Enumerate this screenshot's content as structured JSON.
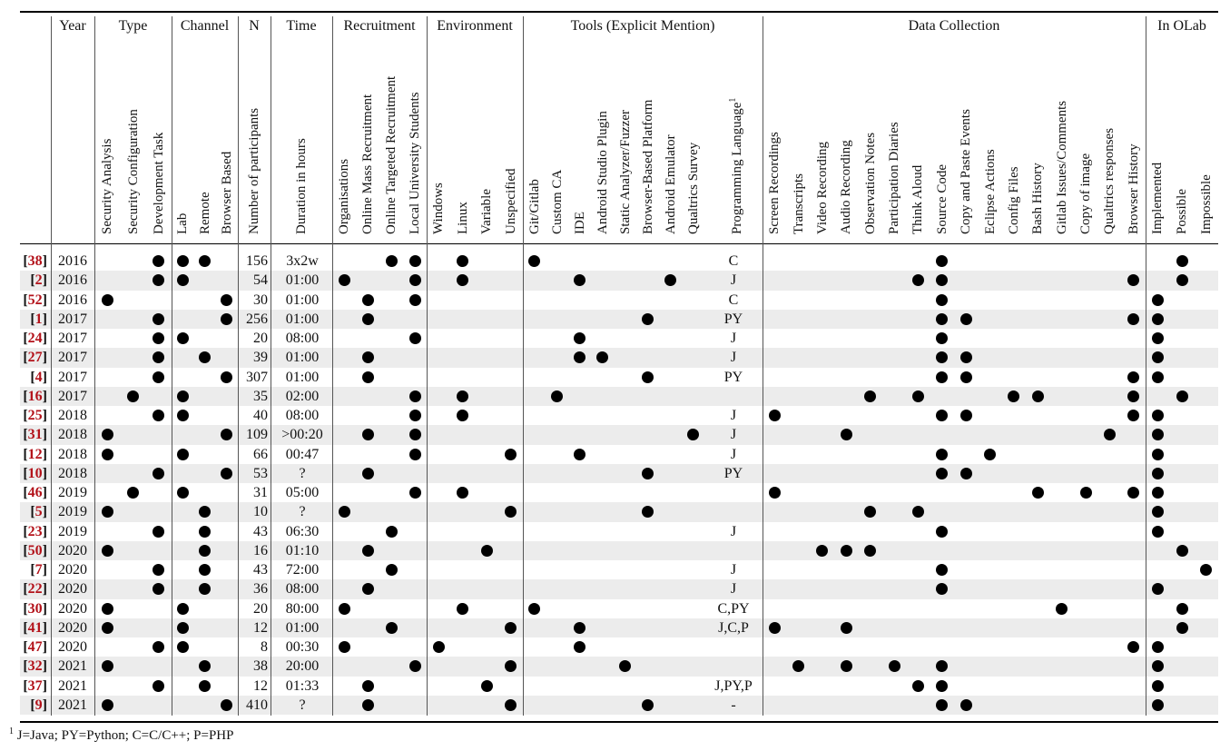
{
  "header": {
    "year": "Year",
    "n": "N",
    "time": "Time",
    "n_sub": "Number of participants",
    "time_sub": "Duration in hours",
    "groups": [
      {
        "key": "type",
        "label": "Type",
        "columns": [
          {
            "key": "sa",
            "label": "Security Analysis"
          },
          {
            "key": "sc",
            "label": "Security Configuration"
          },
          {
            "key": "dev",
            "label": "Development Task"
          }
        ]
      },
      {
        "key": "channel",
        "label": "Channel",
        "columns": [
          {
            "key": "lab",
            "label": "Lab"
          },
          {
            "key": "remote",
            "label": "Remote"
          },
          {
            "key": "browser",
            "label": "Browser Based"
          }
        ]
      },
      {
        "key": "recruit",
        "label": "Recruitment",
        "columns": [
          {
            "key": "org",
            "label": "Organisations"
          },
          {
            "key": "mass",
            "label": "Online Mass Recruitment"
          },
          {
            "key": "targeted",
            "label": "Online Targeted Recruitment"
          },
          {
            "key": "local",
            "label": "Local University Students"
          }
        ]
      },
      {
        "key": "env",
        "label": "Environment",
        "columns": [
          {
            "key": "win",
            "label": "Windows"
          },
          {
            "key": "linux",
            "label": "Linux"
          },
          {
            "key": "variable",
            "label": "Variable"
          },
          {
            "key": "unspec",
            "label": "Unspecified"
          }
        ]
      },
      {
        "key": "tools",
        "label": "Tools (Explicit Mention)",
        "columns": [
          {
            "key": "git",
            "label": "Git/Gitlab"
          },
          {
            "key": "ca",
            "label": "Custom CA"
          },
          {
            "key": "ide",
            "label": "IDE"
          },
          {
            "key": "asp",
            "label": "Android Studio Plugin"
          },
          {
            "key": "static",
            "label": "Static Analyzer/Fuzzer"
          },
          {
            "key": "bbp",
            "label": "Browser-Based Platform"
          },
          {
            "key": "emu",
            "label": "Android Emulator"
          },
          {
            "key": "qs",
            "label": "Qualtrics Survey"
          },
          {
            "key": "lang",
            "label": "Programming Language",
            "sup": "1"
          }
        ]
      },
      {
        "key": "dc",
        "label": "Data Collection",
        "columns": [
          {
            "key": "screen",
            "label": "Screen Recordings"
          },
          {
            "key": "transcripts",
            "label": "Transcripts"
          },
          {
            "key": "video",
            "label": "Video Recording"
          },
          {
            "key": "audio",
            "label": "Audio Recording"
          },
          {
            "key": "obs",
            "label": "Observation Notes"
          },
          {
            "key": "diaries",
            "label": "Participation Diaries"
          },
          {
            "key": "think",
            "label": "Think Aloud"
          },
          {
            "key": "source",
            "label": "Source Code"
          },
          {
            "key": "copy",
            "label": "Copy and Paste Events"
          },
          {
            "key": "eclipse",
            "label": "Eclipse Actions"
          },
          {
            "key": "config",
            "label": "Config Files"
          },
          {
            "key": "bash",
            "label": "Bash History"
          },
          {
            "key": "gitlab",
            "label": "Gitlab Issues/Comments"
          },
          {
            "key": "image",
            "label": "Copy of image"
          },
          {
            "key": "qresp",
            "label": "Qualtrics responses"
          },
          {
            "key": "bhist",
            "label": "Browser History"
          }
        ]
      },
      {
        "key": "olab",
        "label": "In OLab",
        "columns": [
          {
            "key": "impl",
            "label": "Implemented"
          },
          {
            "key": "possible",
            "label": "Possible"
          },
          {
            "key": "impossible",
            "label": "Impossible"
          }
        ]
      }
    ]
  },
  "rows": [
    {
      "ref": "38",
      "year": "2016",
      "n": "156",
      "time": "3x2w",
      "lang": "C",
      "dots": [
        "dev",
        "lab",
        "remote",
        "targeted",
        "local",
        "linux",
        "git",
        "source",
        "possible"
      ]
    },
    {
      "ref": "2",
      "year": "2016",
      "n": "54",
      "time": "01:00",
      "lang": "J",
      "dots": [
        "dev",
        "lab",
        "org",
        "local",
        "linux",
        "ide",
        "emu",
        "think",
        "source",
        "bhist",
        "possible"
      ]
    },
    {
      "ref": "52",
      "year": "2016",
      "n": "30",
      "time": "01:00",
      "lang": "C",
      "dots": [
        "sa",
        "browser",
        "mass",
        "local",
        "source",
        "impl"
      ]
    },
    {
      "ref": "1",
      "year": "2017",
      "n": "256",
      "time": "01:00",
      "lang": "PY",
      "dots": [
        "dev",
        "browser",
        "mass",
        "bbp",
        "source",
        "copy",
        "bhist",
        "impl"
      ]
    },
    {
      "ref": "24",
      "year": "2017",
      "n": "20",
      "time": "08:00",
      "lang": "J",
      "dots": [
        "dev",
        "lab",
        "local",
        "ide",
        "source",
        "impl"
      ]
    },
    {
      "ref": "27",
      "year": "2017",
      "n": "39",
      "time": "01:00",
      "lang": "J",
      "dots": [
        "dev",
        "remote",
        "mass",
        "ide",
        "asp",
        "source",
        "copy",
        "impl"
      ]
    },
    {
      "ref": "4",
      "year": "2017",
      "n": "307",
      "time": "01:00",
      "lang": "PY",
      "dots": [
        "dev",
        "browser",
        "mass",
        "bbp",
        "source",
        "copy",
        "bhist",
        "impl"
      ]
    },
    {
      "ref": "16",
      "year": "2017",
      "n": "35",
      "time": "02:00",
      "lang": "",
      "dots": [
        "sc",
        "lab",
        "local",
        "linux",
        "ca",
        "obs",
        "think",
        "config",
        "bash",
        "bhist",
        "possible"
      ]
    },
    {
      "ref": "25",
      "year": "2018",
      "n": "40",
      "time": "08:00",
      "lang": "J",
      "dots": [
        "dev",
        "lab",
        "local",
        "linux",
        "screen",
        "source",
        "copy",
        "bhist",
        "impl"
      ]
    },
    {
      "ref": "31",
      "year": "2018",
      "n": "109",
      "time": ">00:20",
      "lang": "J",
      "dots": [
        "sa",
        "browser",
        "mass",
        "local",
        "qs",
        "audio",
        "qresp",
        "impl"
      ]
    },
    {
      "ref": "12",
      "year": "2018",
      "n": "66",
      "time": "00:47",
      "lang": "J",
      "dots": [
        "sa",
        "lab",
        "local",
        "unspec",
        "ide",
        "source",
        "eclipse",
        "impl"
      ]
    },
    {
      "ref": "10",
      "year": "2018",
      "n": "53",
      "time": "?",
      "lang": "PY",
      "dots": [
        "dev",
        "browser",
        "mass",
        "bbp",
        "source",
        "copy",
        "impl"
      ]
    },
    {
      "ref": "46",
      "year": "2019",
      "n": "31",
      "time": "05:00",
      "lang": "",
      "dots": [
        "sc",
        "lab",
        "local",
        "linux",
        "screen",
        "bash",
        "image",
        "bhist",
        "impl"
      ]
    },
    {
      "ref": "5",
      "year": "2019",
      "n": "10",
      "time": "?",
      "lang": "",
      "dots": [
        "sa",
        "remote",
        "org",
        "unspec",
        "bbp",
        "obs",
        "think",
        "impl"
      ]
    },
    {
      "ref": "23",
      "year": "2019",
      "n": "43",
      "time": "06:30",
      "lang": "J",
      "dots": [
        "dev",
        "remote",
        "targeted",
        "source",
        "impl"
      ]
    },
    {
      "ref": "50",
      "year": "2020",
      "n": "16",
      "time": "01:10",
      "lang": "",
      "dots": [
        "sa",
        "remote",
        "mass",
        "variable",
        "video",
        "audio",
        "obs",
        "possible"
      ]
    },
    {
      "ref": "7",
      "year": "2020",
      "n": "43",
      "time": "72:00",
      "lang": "J",
      "dots": [
        "dev",
        "remote",
        "targeted",
        "source",
        "impossible"
      ]
    },
    {
      "ref": "22",
      "year": "2020",
      "n": "36",
      "time": "08:00",
      "lang": "J",
      "dots": [
        "dev",
        "remote",
        "mass",
        "source",
        "impl"
      ]
    },
    {
      "ref": "30",
      "year": "2020",
      "n": "20",
      "time": "80:00",
      "lang": "C,PY",
      "dots": [
        "sa",
        "lab",
        "org",
        "linux",
        "git",
        "gitlab",
        "possible"
      ]
    },
    {
      "ref": "41",
      "year": "2020",
      "n": "12",
      "time": "01:00",
      "lang": "J,C,P",
      "dots": [
        "sa",
        "lab",
        "targeted",
        "unspec",
        "ide",
        "screen",
        "audio",
        "possible"
      ]
    },
    {
      "ref": "47",
      "year": "2020",
      "n": "8",
      "time": "00:30",
      "lang": "",
      "dots": [
        "dev",
        "lab",
        "org",
        "win",
        "ide",
        "bhist",
        "impl"
      ]
    },
    {
      "ref": "32",
      "year": "2021",
      "n": "38",
      "time": "20:00",
      "lang": "",
      "dots": [
        "sa",
        "remote",
        "local",
        "unspec",
        "static",
        "transcripts",
        "audio",
        "diaries",
        "source",
        "impl"
      ]
    },
    {
      "ref": "37",
      "year": "2021",
      "n": "12",
      "time": "01:33",
      "lang": "J,PY,P",
      "dots": [
        "dev",
        "remote",
        "mass",
        "variable",
        "think",
        "source",
        "impl"
      ]
    },
    {
      "ref": "9",
      "year": "2021",
      "n": "410",
      "time": "?",
      "lang": "-",
      "dots": [
        "sa",
        "browser",
        "mass",
        "unspec",
        "bbp",
        "source",
        "copy",
        "impl"
      ]
    }
  ],
  "footnote": {
    "mark": "1",
    "text": "J=Java; PY=Python; C=C/C++; P=PHP"
  }
}
